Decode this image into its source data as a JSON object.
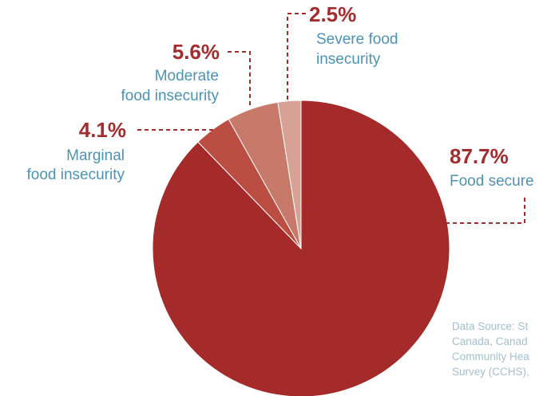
{
  "chart_data": {
    "type": "pie",
    "slices": [
      {
        "label_lines": [
          "Food secure"
        ],
        "value": 87.7,
        "value_label": "87.7%",
        "color": "#a52a2a"
      },
      {
        "label_lines": [
          "Marginal",
          "food insecurity"
        ],
        "value": 4.1,
        "value_label": "4.1%",
        "color": "#bb4d43"
      },
      {
        "label_lines": [
          "Moderate",
          "food insecurity"
        ],
        "value": 5.6,
        "value_label": "5.6%",
        "color": "#c77a69"
      },
      {
        "label_lines": [
          "Severe food",
          "insecurity"
        ],
        "value": 2.5,
        "value_label": "2.5%",
        "color": "#d8a196"
      }
    ]
  },
  "source_lines": [
    "Data Source: St",
    "Canada, Canad",
    "Community Hea",
    "Survey (CCHS),"
  ]
}
